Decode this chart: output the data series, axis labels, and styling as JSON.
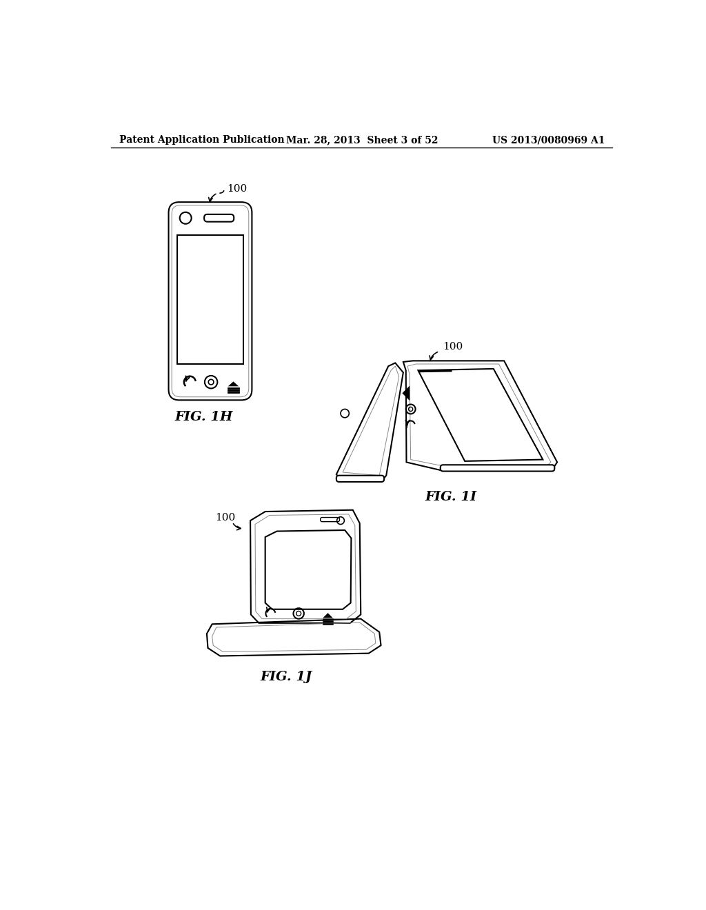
{
  "bg_color": "#ffffff",
  "header_left": "Patent Application Publication",
  "header_mid": "Mar. 28, 2013  Sheet 3 of 52",
  "header_right": "US 2013/0080969 A1",
  "fig1h_label": "FIG. 1H",
  "fig1i_label": "FIG. 1I",
  "fig1j_label": "FIG. 1J",
  "ref_100": "100"
}
